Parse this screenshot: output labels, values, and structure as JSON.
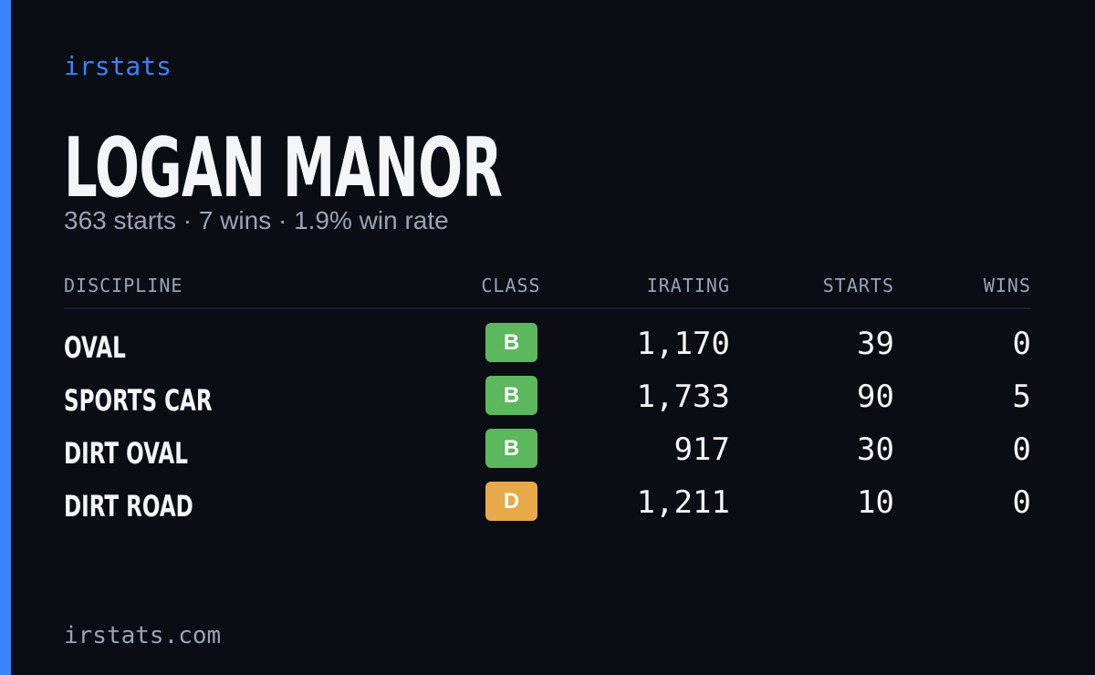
{
  "brand": "irstats",
  "driver": {
    "name": "LOGAN MANOR",
    "summary": "363 starts · 7 wins · 1.9% win rate"
  },
  "table": {
    "headers": [
      "DISCIPLINE",
      "CLASS",
      "IRATING",
      "STARTS",
      "WINS"
    ],
    "rows": [
      [
        "OVAL",
        "B",
        "1,170",
        "39",
        "0"
      ],
      [
        "SPORTS CAR",
        "B",
        "1,733",
        "90",
        "5"
      ],
      [
        "DIRT OVAL",
        "B",
        "917",
        "30",
        "0"
      ],
      [
        "DIRT ROAD",
        "D",
        "1,211",
        "10",
        "0"
      ]
    ]
  },
  "footer": "irstats.com"
}
